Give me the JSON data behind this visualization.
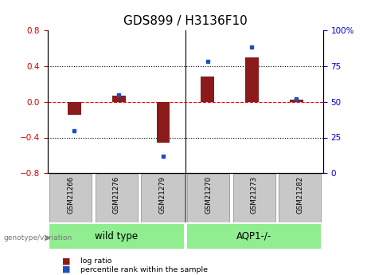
{
  "title": "GDS899 / H3136F10",
  "samples": [
    "GSM21266",
    "GSM21276",
    "GSM21279",
    "GSM21270",
    "GSM21273",
    "GSM21282"
  ],
  "log_ratio": [
    -0.15,
    0.07,
    -0.46,
    0.28,
    0.5,
    0.02
  ],
  "percentile_rank": [
    30,
    55,
    12,
    78,
    88,
    52
  ],
  "group_divider": 3,
  "bar_color_red": "#8B1A1A",
  "bar_color_blue": "#1E4FBE",
  "left_ylim": [
    -0.8,
    0.8
  ],
  "right_ylim": [
    0,
    100
  ],
  "left_yticks": [
    -0.8,
    -0.4,
    0.0,
    0.4,
    0.8
  ],
  "right_yticks": [
    0,
    25,
    50,
    75,
    100
  ],
  "right_yticklabels": [
    "0",
    "25",
    "50",
    "75",
    "100%"
  ],
  "dotted_hlines": [
    -0.4,
    0.4
  ],
  "title_fontsize": 11,
  "tick_fontsize": 7.5,
  "bar_width": 0.5,
  "tick_color_left": "#CC0000",
  "tick_color_right": "#0000CC",
  "group_colors": [
    "#90EE90",
    "#90EE90"
  ],
  "group_labels": [
    "wild type",
    "AQP1-/-"
  ],
  "group_starts": [
    0,
    3
  ],
  "group_ends": [
    3,
    6
  ],
  "genotype_label": "genotype/variation",
  "legend_red": "log ratio",
  "legend_blue": "percentile rank within the sample",
  "sample_box_color": "#C8C8C8",
  "fig_bg": "#ffffff"
}
